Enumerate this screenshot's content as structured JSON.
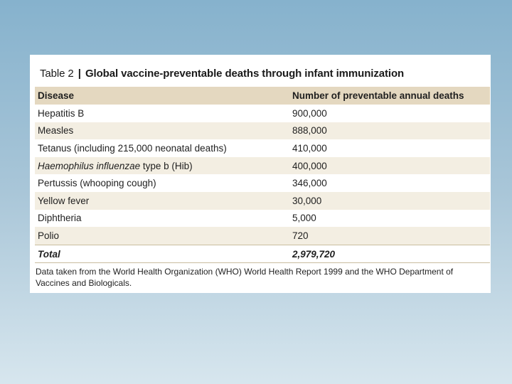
{
  "table": {
    "caption_prefix": "Table 2",
    "caption_separator": "|",
    "caption_title": "Global vaccine-preventable deaths through infant immunization",
    "headers": [
      "Disease",
      "Number of preventable annual deaths"
    ],
    "rows": [
      {
        "disease_italic": "",
        "disease": "Hepatitis B",
        "deaths": "900,000"
      },
      {
        "disease_italic": "",
        "disease": "Measles",
        "deaths": "888,000"
      },
      {
        "disease_italic": "",
        "disease": "Tetanus (including 215,000 neonatal deaths)",
        "deaths": "410,000"
      },
      {
        "disease_italic": "Haemophilus influenzae",
        "disease": " type b (Hib)",
        "deaths": "400,000"
      },
      {
        "disease_italic": "",
        "disease": "Pertussis (whooping cough)",
        "deaths": "346,000"
      },
      {
        "disease_italic": "",
        "disease": "Yellow fever",
        "deaths": "30,000"
      },
      {
        "disease_italic": "",
        "disease": "Diphtheria",
        "deaths": "5,000"
      },
      {
        "disease_italic": "",
        "disease": "Polio",
        "deaths": "720"
      }
    ],
    "total": {
      "label": "Total",
      "deaths": "2,979,720"
    },
    "footnote": "Data taken from the World Health Organization (WHO) World Health Report 1999 and the WHO Department of Vaccines and Biologicals."
  }
}
